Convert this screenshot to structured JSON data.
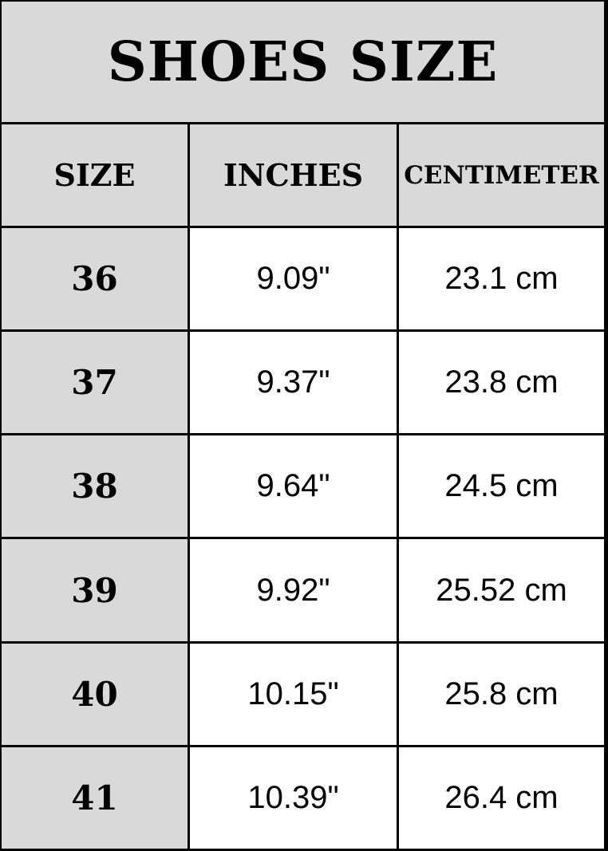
{
  "chart_data": {
    "type": "table",
    "title": "SHOES SIZE",
    "columns": [
      "SIZE",
      "INCHES",
      "CENTIMETER"
    ],
    "rows": [
      [
        "36",
        "9.09\"",
        "23.1 cm"
      ],
      [
        "37",
        "9.37\"",
        "23.8 cm"
      ],
      [
        "38",
        "9.64\"",
        "24.5 cm"
      ],
      [
        "39",
        "9.92\"",
        "25.52 cm"
      ],
      [
        "40",
        "10.15\"",
        "25.8 cm"
      ],
      [
        "41",
        "10.39\"",
        "26.4 cm"
      ]
    ],
    "sizes": [
      36,
      37,
      38,
      39,
      40,
      41
    ],
    "inches": [
      9.09,
      9.37,
      9.64,
      9.92,
      10.15,
      10.39
    ],
    "centimeters": [
      23.1,
      23.8,
      24.5,
      25.52,
      25.8,
      26.4
    ],
    "layout": {
      "header_background": "#d9d9d9",
      "size_column_background": "#d9d9d9",
      "value_cell_background": "#ffffff",
      "border_color": "#000000",
      "text_color": "#000000"
    }
  }
}
